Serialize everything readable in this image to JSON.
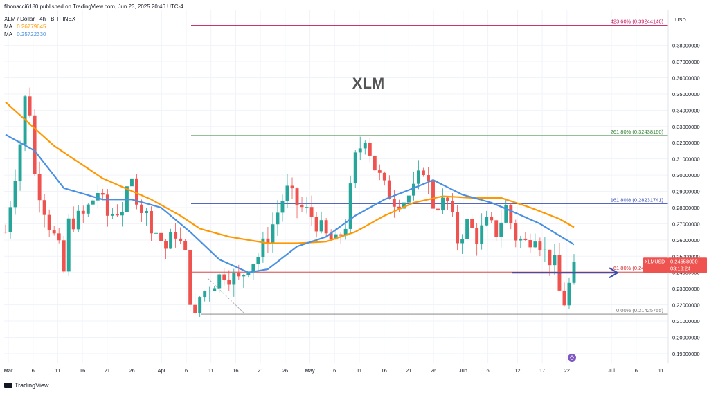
{
  "header": {
    "published": "fibonacci6180 published on TradingView.com, Jun 23, 2025 20:46 UTC-4",
    "symbol_line": "XLM / Dollar · 4h · BITFINEX",
    "ma1_label": "MA",
    "ma1_value": "0.26779645",
    "ma2_label": "MA",
    "ma2_value": "0.25722330"
  },
  "footer": {
    "brand": "TradingView"
  },
  "colors": {
    "up": "#26a69a",
    "down": "#ef5350",
    "ma_orange": "#ff9800",
    "ma_blue": "#4a90e2",
    "fib_top": "#c2185b",
    "fib_2618": "#2e7d32",
    "fib_1618": "#3f51b5",
    "fib_618": "#d32f2f",
    "fib_0": "#777777",
    "arrow": "#3949ab",
    "price_tag": "#ef5350"
  },
  "chart_data": {
    "type": "candlestick",
    "title": "XLM",
    "currency": "USD",
    "x_tick_labels": [
      "Mar",
      "6",
      "11",
      "16",
      "21",
      "26",
      "Apr",
      "6",
      "11",
      "16",
      "21",
      "26",
      "May",
      "6",
      "11",
      "16",
      "21",
      "26",
      "Jun",
      "6",
      "12",
      "17",
      "22",
      "Jul",
      "6",
      "11"
    ],
    "y_tick_labels": [
      "0.38000000",
      "0.37000000",
      "0.36000000",
      "0.35000000",
      "0.34000000",
      "0.33000000",
      "0.32000000",
      "0.31000000",
      "0.30000000",
      "0.29000000",
      "0.28000000",
      "0.27000000",
      "0.26000000",
      "0.25000000",
      "0.24000000",
      "0.23000000",
      "0.22000000",
      "0.21000000",
      "0.20000000",
      "0.19000000"
    ],
    "y_range": [
      0.184,
      0.402
    ],
    "last_price": {
      "symbol": "XLMUSD",
      "value": "0.24658000",
      "countdown": "03:13:24"
    },
    "fib_levels": [
      {
        "label": "423.60% (0.39244146)",
        "value": 0.39244146
      },
      {
        "label": "261.80% (0.32438160)",
        "value": 0.3243816
      },
      {
        "label": "161.80% (0.28231741)",
        "value": 0.28231741
      },
      {
        "label": "61.80% (0.24025322)",
        "value": 0.24025322
      },
      {
        "label": "0.00% (0.21425755)",
        "value": 0.21425755
      }
    ],
    "path_keypoints": [
      [
        0,
        0.265
      ],
      [
        3,
        0.32
      ],
      [
        4.5,
        0.36
      ],
      [
        6,
        0.3
      ],
      [
        9,
        0.27
      ],
      [
        11.5,
        0.25
      ],
      [
        12,
        0.24
      ],
      [
        13,
        0.27
      ],
      [
        16,
        0.275
      ],
      [
        19,
        0.29
      ],
      [
        21,
        0.275
      ],
      [
        24,
        0.28
      ],
      [
        26,
        0.295
      ],
      [
        28,
        0.28
      ],
      [
        31,
        0.265
      ],
      [
        33,
        0.255
      ],
      [
        35,
        0.265
      ],
      [
        37,
        0.25
      ],
      [
        38.2,
        0.22
      ],
      [
        38.8,
        0.208
      ],
      [
        40,
        0.225
      ],
      [
        42,
        0.232
      ],
      [
        45,
        0.24
      ],
      [
        48,
        0.235
      ],
      [
        50,
        0.245
      ],
      [
        52,
        0.25
      ],
      [
        54,
        0.262
      ],
      [
        57,
        0.285
      ],
      [
        58,
        0.29
      ],
      [
        60,
        0.282
      ],
      [
        63,
        0.275
      ],
      [
        66,
        0.262
      ],
      [
        68,
        0.258
      ],
      [
        70,
        0.27
      ],
      [
        72,
        0.31
      ],
      [
        74,
        0.325
      ],
      [
        76,
        0.305
      ],
      [
        78,
        0.292
      ],
      [
        80,
        0.285
      ],
      [
        82,
        0.285
      ],
      [
        84,
        0.29
      ],
      [
        86,
        0.305
      ],
      [
        88,
        0.282
      ],
      [
        91,
        0.283
      ],
      [
        93,
        0.26
      ],
      [
        95,
        0.27
      ],
      [
        97,
        0.262
      ],
      [
        99,
        0.27
      ],
      [
        101,
        0.265
      ],
      [
        103,
        0.28
      ],
      [
        105,
        0.262
      ],
      [
        107,
        0.258
      ],
      [
        109,
        0.265
      ],
      [
        111,
        0.252
      ],
      [
        113,
        0.245
      ],
      [
        114,
        0.228
      ],
      [
        115,
        0.222
      ],
      [
        116,
        0.232
      ],
      [
        117,
        0.2466
      ]
    ],
    "ma_orange_points": [
      [
        0,
        0.345
      ],
      [
        10,
        0.318
      ],
      [
        20,
        0.298
      ],
      [
        30,
        0.285
      ],
      [
        36,
        0.275
      ],
      [
        40,
        0.267
      ],
      [
        46,
        0.262
      ],
      [
        54,
        0.258
      ],
      [
        60,
        0.258
      ],
      [
        66,
        0.259
      ],
      [
        72,
        0.265
      ],
      [
        78,
        0.275
      ],
      [
        84,
        0.283
      ],
      [
        90,
        0.287
      ],
      [
        96,
        0.286
      ],
      [
        102,
        0.286
      ],
      [
        108,
        0.28
      ],
      [
        114,
        0.273
      ],
      [
        117,
        0.2678
      ]
    ],
    "ma_blue_points": [
      [
        0,
        0.325
      ],
      [
        6,
        0.315
      ],
      [
        12,
        0.292
      ],
      [
        20,
        0.285
      ],
      [
        26,
        0.285
      ],
      [
        32,
        0.28
      ],
      [
        38,
        0.265
      ],
      [
        44,
        0.248
      ],
      [
        50,
        0.24
      ],
      [
        54,
        0.242
      ],
      [
        60,
        0.256
      ],
      [
        66,
        0.262
      ],
      [
        72,
        0.275
      ],
      [
        78,
        0.285
      ],
      [
        84,
        0.292
      ],
      [
        88,
        0.297
      ],
      [
        94,
        0.288
      ],
      [
        100,
        0.283
      ],
      [
        104,
        0.278
      ],
      [
        110,
        0.27
      ],
      [
        117,
        0.2572
      ]
    ]
  }
}
